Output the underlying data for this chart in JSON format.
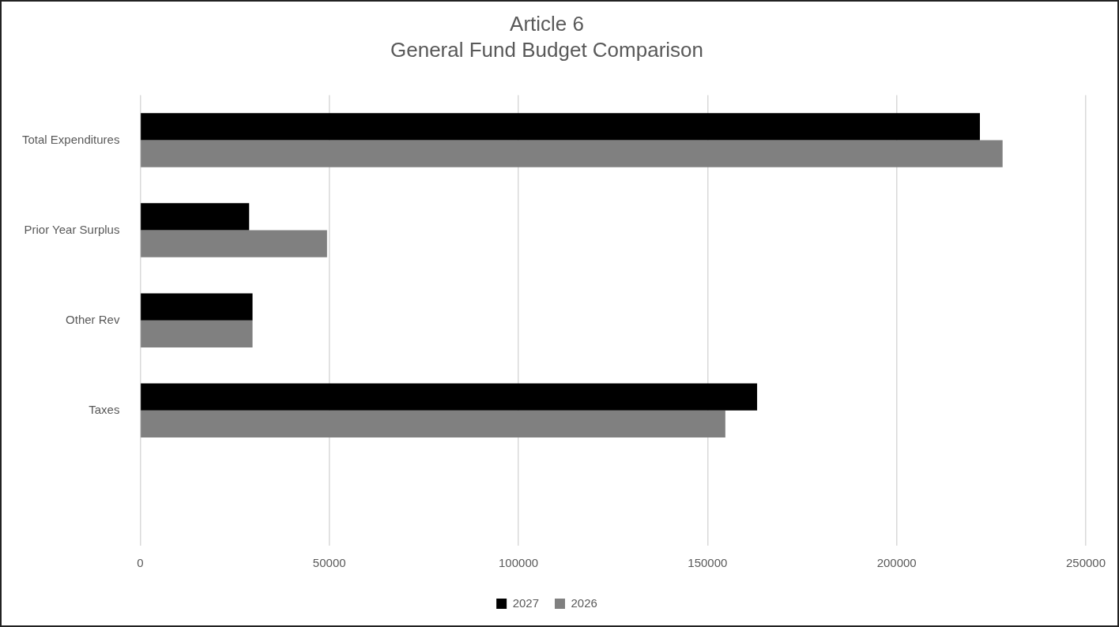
{
  "chart_data": {
    "type": "bar",
    "orientation": "horizontal",
    "title": "Article 6",
    "subtitle": "General Fund Budget Comparison",
    "categories": [
      "Total Expenditures",
      "Prior Year Surplus",
      "Other Rev",
      "Taxes",
      null
    ],
    "series": [
      {
        "name": "2027",
        "color": "#000000",
        "values": [
          222000,
          28800,
          29700,
          163100,
          null
        ]
      },
      {
        "name": "2026",
        "color": "#808080",
        "values": [
          228000,
          49400,
          29700,
          154700,
          null
        ]
      }
    ],
    "xlim": [
      0,
      250000
    ],
    "xticks": [
      0,
      50000,
      100000,
      150000,
      200000,
      250000
    ],
    "grid": "x",
    "legend": "bottom"
  }
}
